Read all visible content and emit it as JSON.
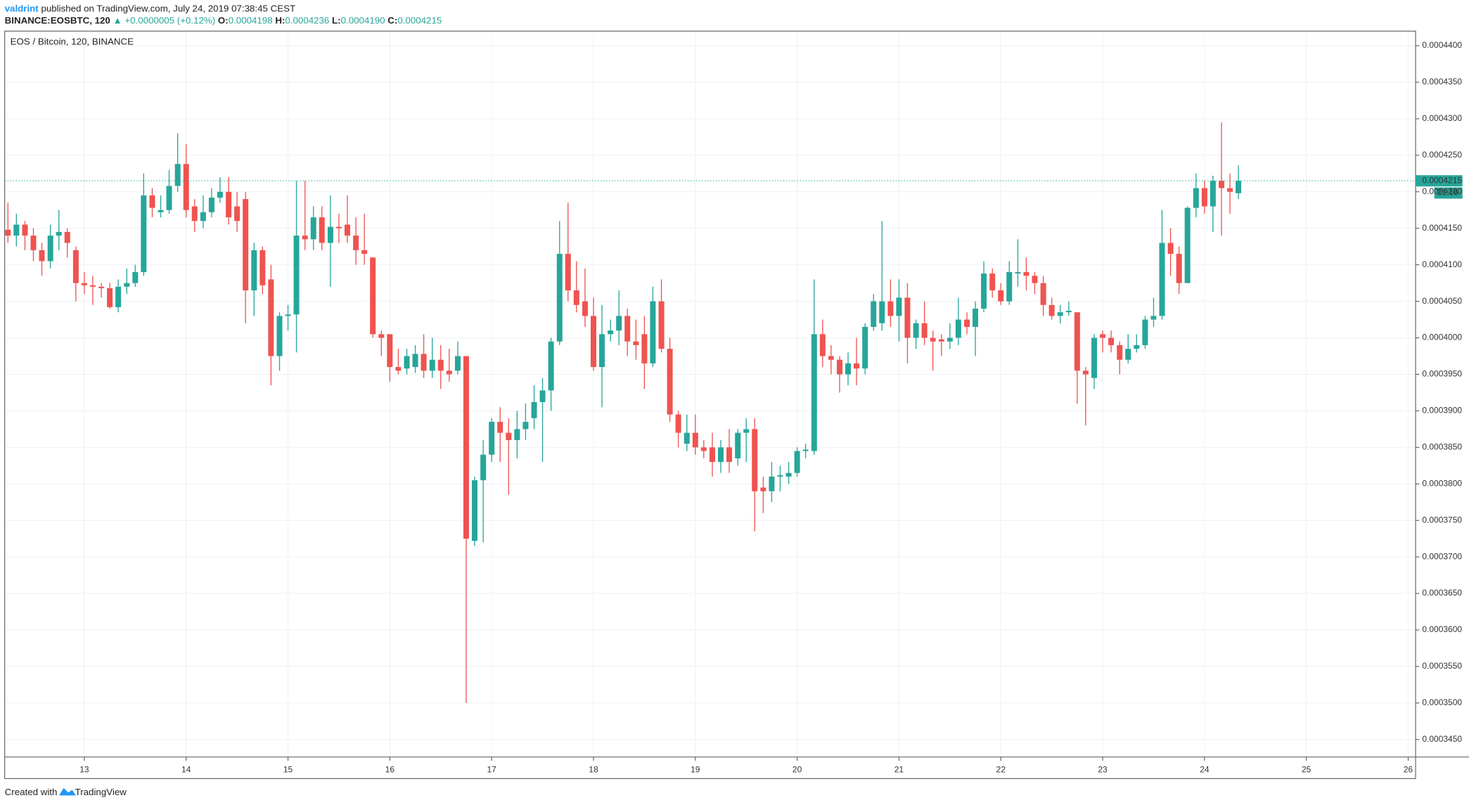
{
  "header": {
    "author": "valdrint",
    "published": "published on TradingView.com, July 24, 2019 07:38:45 CEST",
    "symbol": "BINANCE:EOSBTC, 120",
    "change": "▲ +0.0000005 (+0.12%)",
    "ohlc": [
      {
        "label": "O:",
        "value": "0.0004198"
      },
      {
        "label": "H:",
        "value": "0.0004236"
      },
      {
        "label": "L:",
        "value": "0.0004190"
      },
      {
        "label": "C:",
        "value": "0.0004215"
      }
    ]
  },
  "footer": {
    "created": "Created with",
    "brand": "TradingView"
  },
  "chart_data": {
    "type": "candlestick",
    "title": "EOS / Bitcoin, 120, BINANCE",
    "up_color": "#26a69a",
    "down_color": "#ef5350",
    "grid": true,
    "x": [
      12.25,
      12.333,
      12.417,
      12.5,
      12.583,
      12.667,
      12.75,
      12.833,
      12.917,
      13,
      13.083,
      13.167,
      13.25,
      13.333,
      13.417,
      13.5,
      13.583,
      13.667,
      13.75,
      13.833,
      13.917,
      14,
      14.083,
      14.167,
      14.25,
      14.333,
      14.417,
      14.5,
      14.583,
      14.667,
      14.75,
      14.833,
      14.917,
      15,
      15.083,
      15.167,
      15.25,
      15.333,
      15.417,
      15.5,
      15.583,
      15.667,
      15.75,
      15.833,
      15.917,
      16,
      16.083,
      16.167,
      16.25,
      16.333,
      16.417,
      16.5,
      16.583,
      16.667,
      16.75,
      16.833,
      16.917,
      17,
      17.083,
      17.167,
      17.25,
      17.333,
      17.417,
      17.5,
      17.583,
      17.667,
      17.75,
      17.833,
      17.917,
      18,
      18.083,
      18.167,
      18.25,
      18.333,
      18.417,
      18.5,
      18.583,
      18.667,
      18.75,
      18.833,
      18.917,
      19,
      19.083,
      19.167,
      19.25,
      19.333,
      19.417,
      19.5,
      19.583,
      19.667,
      19.75,
      19.833,
      19.917,
      20,
      20.083,
      20.167,
      20.25,
      20.333,
      20.417,
      20.5,
      20.583,
      20.667,
      20.75,
      20.833,
      20.917,
      21,
      21.083,
      21.167,
      21.25,
      21.333,
      21.417,
      21.5,
      21.583,
      21.667,
      21.75,
      21.833,
      21.917,
      22,
      22.083,
      22.167,
      22.25,
      22.333,
      22.417,
      22.5,
      22.583,
      22.667,
      22.75,
      22.833,
      22.917,
      23,
      23.083,
      23.167,
      23.25,
      23.333,
      23.417,
      23.5,
      23.583,
      23.667,
      23.75,
      23.833,
      23.917,
      24,
      24.083,
      24.167,
      24.25,
      24.333
    ],
    "open": [
      0.0004148,
      0.000414,
      0.0004155,
      0.000414,
      0.000412,
      0.0004105,
      0.000414,
      0.0004145,
      0.000412,
      0.0004075,
      0.0004072,
      0.000407,
      0.0004068,
      0.0004042,
      0.000407,
      0.0004075,
      0.000409,
      0.0004195,
      0.0004172,
      0.0004175,
      0.0004208,
      0.0004238,
      0.000418,
      0.000416,
      0.0004172,
      0.0004192,
      0.00042,
      0.000418,
      0.000419,
      0.0004065,
      0.000412,
      0.000408,
      0.0003975,
      0.000403,
      0.0004032,
      0.000414,
      0.0004135,
      0.0004165,
      0.000413,
      0.0004152,
      0.0004155,
      0.000414,
      0.000412,
      0.000411,
      0.0004005,
      0.0004005,
      0.000396,
      0.0003958,
      0.000396,
      0.0003978,
      0.0003955,
      0.000397,
      0.0003955,
      0.0003955,
      0.0003975,
      0.0003722,
      0.0003805,
      0.000384,
      0.0003885,
      0.000387,
      0.000386,
      0.0003875,
      0.000389,
      0.0003912,
      0.0003928,
      0.0003995,
      0.0004115,
      0.0004065,
      0.000405,
      0.000403,
      0.000396,
      0.0004005,
      0.000401,
      0.000403,
      0.0003995,
      0.0004005,
      0.0003965,
      0.000405,
      0.0003985,
      0.0003895,
      0.0003855,
      0.000387,
      0.000385,
      0.000385,
      0.000383,
      0.000385,
      0.0003835,
      0.000387,
      0.0003875,
      0.0003795,
      0.000379,
      0.000381,
      0.000381,
      0.0003815,
      0.0003845,
      0.0003845,
      0.0004005,
      0.0003975,
      0.000397,
      0.000395,
      0.0003965,
      0.0003958,
      0.0004015,
      0.000402,
      0.000405,
      0.000403,
      0.0004055,
      0.0004,
      0.000402,
      0.0004,
      0.0003998,
      0.0003995,
      0.0004,
      0.0004025,
      0.0004015,
      0.000404,
      0.0004088,
      0.0004065,
      0.000405,
      0.0004088,
      0.000409,
      0.0004085,
      0.0004075,
      0.0004045,
      0.000403,
      0.0004035,
      0.0004035,
      0.0003955,
      0.0003945,
      0.0004005,
      0.0004,
      0.000399,
      0.000397,
      0.0003985,
      0.000399,
      0.0004025,
      0.000403,
      0.000413,
      0.0004115,
      0.0004075,
      0.0004178,
      0.0004205,
      0.000418,
      0.0004215,
      0.0004205,
      0.0004198
    ],
    "high": [
      0.0004185,
      0.000417,
      0.000416,
      0.000415,
      0.000413,
      0.0004155,
      0.0004175,
      0.000415,
      0.0004125,
      0.000409,
      0.0004085,
      0.0004075,
      0.0004075,
      0.000408,
      0.0004095,
      0.00041,
      0.0004225,
      0.0004205,
      0.0004195,
      0.000423,
      0.000428,
      0.0004265,
      0.000419,
      0.0004195,
      0.0004205,
      0.000422,
      0.000422,
      0.00042,
      0.00042,
      0.000413,
      0.0004125,
      0.00041,
      0.0004035,
      0.0004045,
      0.0004215,
      0.0004215,
      0.000418,
      0.000418,
      0.0004195,
      0.000417,
      0.0004195,
      0.0004165,
      0.000417,
      0.000411,
      0.000401,
      0.0004005,
      0.0003985,
      0.0003985,
      0.000399,
      0.0004005,
      0.0004,
      0.000399,
      0.0003985,
      0.0003995,
      0.0003975,
      0.000381,
      0.000386,
      0.000389,
      0.0003905,
      0.000389,
      0.00039,
      0.000391,
      0.0003935,
      0.0003945,
      0.0004,
      0.000416,
      0.0004185,
      0.0004105,
      0.0004095,
      0.0004055,
      0.0004045,
      0.0004025,
      0.0004065,
      0.000404,
      0.0004025,
      0.000403,
      0.000407,
      0.000408,
      0.0004,
      0.00039,
      0.0003895,
      0.0003895,
      0.000386,
      0.000387,
      0.000386,
      0.0003875,
      0.0003875,
      0.000389,
      0.000389,
      0.000381,
      0.000383,
      0.0003825,
      0.000383,
      0.000385,
      0.0003855,
      0.000408,
      0.0004025,
      0.000399,
      0.0003975,
      0.000398,
      0.0004,
      0.000402,
      0.000406,
      0.000416,
      0.000408,
      0.000408,
      0.0004075,
      0.0004025,
      0.000405,
      0.000401,
      0.0004005,
      0.000402,
      0.0004055,
      0.0004035,
      0.000405,
      0.0004105,
      0.0004095,
      0.0004075,
      0.0004105,
      0.0004135,
      0.000411,
      0.000409,
      0.0004085,
      0.0004055,
      0.0004045,
      0.000405,
      0.0004035,
      0.000396,
      0.0004005,
      0.000401,
      0.000401,
      0.0003995,
      0.0004005,
      0.0004005,
      0.000403,
      0.0004055,
      0.0004175,
      0.000415,
      0.0004125,
      0.000418,
      0.0004225,
      0.0004215,
      0.0004222,
      0.0004295,
      0.0004225,
      0.0004236
    ],
    "low": [
      0.000413,
      0.0004125,
      0.000412,
      0.0004105,
      0.0004085,
      0.0004095,
      0.000412,
      0.000411,
      0.000405,
      0.000406,
      0.0004045,
      0.0004055,
      0.000404,
      0.0004035,
      0.000406,
      0.000407,
      0.0004085,
      0.0004165,
      0.0004165,
      0.000417,
      0.00042,
      0.0004165,
      0.0004145,
      0.000415,
      0.0004165,
      0.0004185,
      0.0004155,
      0.0004145,
      0.000402,
      0.000403,
      0.000406,
      0.0003935,
      0.0003955,
      0.000401,
      0.000398,
      0.000412,
      0.000412,
      0.000412,
      0.000407,
      0.000413,
      0.000413,
      0.00041,
      0.00041,
      0.0004,
      0.0003975,
      0.000394,
      0.000395,
      0.000395,
      0.0003952,
      0.0003945,
      0.0003945,
      0.000393,
      0.000394,
      0.000395,
      0.00035,
      0.0003715,
      0.000372,
      0.000383,
      0.000383,
      0.0003785,
      0.0003835,
      0.000386,
      0.0003875,
      0.000383,
      0.00039,
      0.000399,
      0.000405,
      0.0004035,
      0.0004015,
      0.0003955,
      0.0003905,
      0.0003995,
      0.000399,
      0.0003975,
      0.000397,
      0.000393,
      0.000396,
      0.000398,
      0.0003885,
      0.000385,
      0.0003845,
      0.000384,
      0.0003835,
      0.000381,
      0.0003815,
      0.0003815,
      0.0003825,
      0.000383,
      0.0003735,
      0.000376,
      0.0003775,
      0.000379,
      0.00038,
      0.000381,
      0.0003835,
      0.000384,
      0.000396,
      0.000395,
      0.0003925,
      0.0003935,
      0.0003935,
      0.000395,
      0.000401,
      0.000401,
      0.0004015,
      0.0003995,
      0.0003965,
      0.0003985,
      0.000399,
      0.0003955,
      0.0003975,
      0.0003985,
      0.000399,
      0.0004005,
      0.0003975,
      0.0004035,
      0.0004055,
      0.0004045,
      0.0004045,
      0.000407,
      0.0004065,
      0.000406,
      0.000403,
      0.0004025,
      0.000402,
      0.000403,
      0.000391,
      0.000388,
      0.000393,
      0.000398,
      0.000398,
      0.000395,
      0.0003965,
      0.000398,
      0.0003985,
      0.0004015,
      0.0004025,
      0.0004085,
      0.000406,
      0.0004075,
      0.0004165,
      0.000417,
      0.0004145,
      0.000414,
      0.000417,
      0.000419
    ],
    "close": [
      0.000414,
      0.0004155,
      0.000414,
      0.000412,
      0.0004105,
      0.000414,
      0.0004145,
      0.000413,
      0.0004075,
      0.0004072,
      0.000407,
      0.0004068,
      0.0004042,
      0.000407,
      0.0004075,
      0.000409,
      0.0004195,
      0.0004178,
      0.0004175,
      0.0004208,
      0.0004238,
      0.0004175,
      0.000416,
      0.0004172,
      0.0004192,
      0.00042,
      0.0004165,
      0.000416,
      0.0004065,
      0.000412,
      0.0004072,
      0.0003975,
      0.000403,
      0.0004032,
      0.000414,
      0.0004135,
      0.0004165,
      0.000413,
      0.0004152,
      0.000415,
      0.000414,
      0.000412,
      0.0004115,
      0.0004005,
      0.0004,
      0.000396,
      0.0003955,
      0.0003975,
      0.0003978,
      0.0003955,
      0.000397,
      0.0003955,
      0.000395,
      0.0003975,
      0.0003725,
      0.0003805,
      0.000384,
      0.0003885,
      0.000387,
      0.000386,
      0.0003875,
      0.0003885,
      0.0003912,
      0.0003928,
      0.0003995,
      0.0004115,
      0.0004065,
      0.0004045,
      0.000403,
      0.000396,
      0.0004005,
      0.000401,
      0.000403,
      0.0003995,
      0.000399,
      0.0003965,
      0.000405,
      0.0003985,
      0.0003895,
      0.000387,
      0.000387,
      0.000385,
      0.0003845,
      0.000383,
      0.000385,
      0.000383,
      0.000387,
      0.0003875,
      0.000379,
      0.000379,
      0.000381,
      0.0003812,
      0.0003815,
      0.0003845,
      0.0003847,
      0.0004005,
      0.0003975,
      0.000397,
      0.000395,
      0.0003965,
      0.0003958,
      0.0004015,
      0.000405,
      0.000405,
      0.000403,
      0.0004055,
      0.0004,
      0.000402,
      0.0004,
      0.0003995,
      0.0003995,
      0.0004,
      0.0004025,
      0.0004015,
      0.000404,
      0.0004088,
      0.0004065,
      0.000405,
      0.000409,
      0.000409,
      0.0004085,
      0.0004075,
      0.0004045,
      0.000403,
      0.0004035,
      0.0004037,
      0.0003955,
      0.000395,
      0.0004,
      0.0004,
      0.000399,
      0.000397,
      0.0003985,
      0.000399,
      0.0004025,
      0.000403,
      0.000413,
      0.0004115,
      0.0004075,
      0.0004178,
      0.0004205,
      0.000418,
      0.0004215,
      0.0004205,
      0.00042,
      0.0004215
    ],
    "xlim": [
      12.218,
      26.073
    ],
    "xticks": [
      13,
      14,
      15,
      16,
      17,
      18,
      19,
      20,
      21,
      22,
      23,
      24,
      25,
      26
    ],
    "ylim": [
      0.0003426,
      0.000442
    ],
    "yticks": [
      {
        "value": 0.000345,
        "label": "0.0003450"
      },
      {
        "value": 0.00035,
        "label": "0.0003500"
      },
      {
        "value": 0.000355,
        "label": "0.0003550"
      },
      {
        "value": 0.00036,
        "label": "0.0003600"
      },
      {
        "value": 0.000365,
        "label": "0.0003650"
      },
      {
        "value": 0.00037,
        "label": "0.0003700"
      },
      {
        "value": 0.000375,
        "label": "0.0003750"
      },
      {
        "value": 0.00038,
        "label": "0.0003800"
      },
      {
        "value": 0.000385,
        "label": "0.0003850"
      },
      {
        "value": 0.00039,
        "label": "0.0003900"
      },
      {
        "value": 0.000395,
        "label": "0.0003950"
      },
      {
        "value": 0.0004,
        "label": "0.0004000"
      },
      {
        "value": 0.000405,
        "label": "0.0004050"
      },
      {
        "value": 0.00041,
        "label": "0.0004100"
      },
      {
        "value": 0.000415,
        "label": "0.0004150"
      },
      {
        "value": 0.00042,
        "label": "0.0004200"
      },
      {
        "value": 0.000425,
        "label": "0.0004250"
      },
      {
        "value": 0.00043,
        "label": "0.0004300"
      },
      {
        "value": 0.000435,
        "label": "0.0004350"
      },
      {
        "value": 0.00044,
        "label": "0.0004400"
      }
    ],
    "last_price": 0.0004215,
    "countdown": "21:16"
  }
}
